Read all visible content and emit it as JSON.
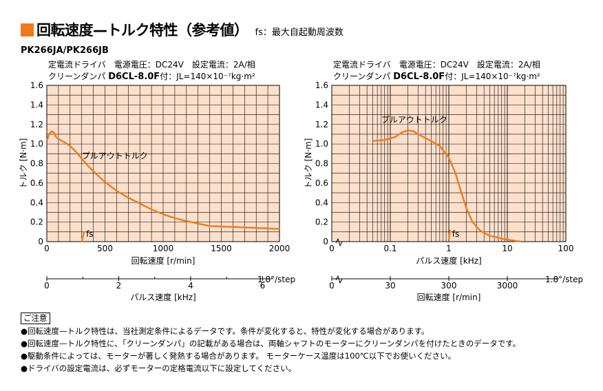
{
  "header": {
    "title": "回転速度—トルク特性（参考値）",
    "subtitle": "fs：最大自起動周波数",
    "accent": "#f07a1a"
  },
  "model": "PK266JA/PK266JB",
  "chart_data": [
    {
      "type": "line",
      "cond1": "定電流ドライバ　電源電圧：DC24V　設定電流：2A/相",
      "cond2_pre": "クリーンダンパ ",
      "cond2_bold": "D6CL-8.0F",
      "cond2_post": "付：JL=140×10⁻⁷kg·m²",
      "ylabel": "トルク [N·m]",
      "xlabel": "回転速度 [r/min]",
      "xlabel2": "パルス速度 [kHz]",
      "ylim": [
        0,
        1.6
      ],
      "xlim": [
        0,
        2000
      ],
      "yticks": [
        "0",
        "0.2",
        "0.4",
        "0.6",
        "0.8",
        "1.0",
        "1.2",
        "1.4",
        "1.6"
      ],
      "xticks": [
        "0",
        "500",
        "1000",
        "1500",
        "2000"
      ],
      "x2ticks": [
        "0",
        "2",
        "4",
        "6"
      ],
      "x2unit": "1.8°/step",
      "curve_label": "プルアウトトルク",
      "fs_label": "fs",
      "color": "#f07a1a",
      "grid_color": "#fde0cc",
      "series": [
        {
          "name": "プルアウトトルク",
          "x": [
            0,
            20,
            40,
            60,
            80,
            100,
            150,
            200,
            250,
            300,
            350,
            400,
            500,
            600,
            700,
            800,
            900,
            1000,
            1100,
            1200,
            1300,
            1400,
            1500,
            1600,
            1800,
            2000
          ],
          "y": [
            1.03,
            1.1,
            1.13,
            1.12,
            1.07,
            1.05,
            1.02,
            0.98,
            0.92,
            0.85,
            0.78,
            0.72,
            0.61,
            0.52,
            0.45,
            0.39,
            0.33,
            0.28,
            0.24,
            0.21,
            0.185,
            0.16,
            0.155,
            0.15,
            0.14,
            0.13
          ]
        }
      ],
      "fs_x": [
        300,
        320
      ],
      "fs_y": [
        0.0,
        0.1
      ]
    },
    {
      "type": "line",
      "cond1": "定電流ドライバ　電源電圧：DC24V　設定電流：2A/相",
      "cond2_pre": "クリーンダンパ ",
      "cond2_bold": "D6CL-8.0F",
      "cond2_post": "付：JL=140×10⁻⁷kg·m²",
      "ylabel": "トルク [N·m]",
      "xlabel": "パルス速度 [kHz]",
      "xlabel2": "回転速度 [r/min]",
      "x_scale": "log",
      "ylim": [
        0,
        1.6
      ],
      "xlim": [
        0.01,
        100
      ],
      "yticks": [
        "0",
        "0.2",
        "0.4",
        "0.6",
        "0.8",
        "1.0",
        "1.2",
        "1.4",
        "1.6"
      ],
      "xticks": [
        "0",
        "0.1",
        "1",
        "10",
        "100"
      ],
      "x2ticks": [
        "0",
        "30",
        "300",
        "3000"
      ],
      "x2unit": "1.8°/step",
      "curve_label": "プルアウトトルク",
      "fs_label": "fs",
      "color": "#f07a1a",
      "grid_color": "#fde0cc",
      "series": [
        {
          "name": "プルアウトトルク",
          "x": [
            0.05,
            0.08,
            0.12,
            0.16,
            0.2,
            0.25,
            0.3,
            0.4,
            0.5,
            0.7,
            1.0,
            1.3,
            1.6,
            2.0,
            2.5,
            3.0,
            3.5,
            4.0,
            5.0,
            6.0,
            8.0,
            10,
            13,
            17
          ],
          "y": [
            1.03,
            1.04,
            1.07,
            1.12,
            1.14,
            1.13,
            1.1,
            1.06,
            1.03,
            0.98,
            0.86,
            0.7,
            0.52,
            0.34,
            0.21,
            0.15,
            0.11,
            0.09,
            0.06,
            0.05,
            0.03,
            0.02,
            0.01,
            0.0
          ]
        }
      ],
      "fs_x": [
        1.0,
        1.05
      ],
      "fs_y": [
        0.02,
        0.12
      ]
    }
  ],
  "notes": {
    "title": "ご注意",
    "items": [
      "●回転速度—トルク特性は、当社測定条件によるデータです。条件が変化すると、特性が変化する場合があります。",
      "●回転速度—トルク特性に、「クリーンダンパ」の記載がある場合は、両軸シャフトのモーターにクリーンダンパを付けたときのデータです。",
      "●駆動条件によっては、モーターが著しく発熱する場合があります。 モーターケース温度は100℃以下でお使いください。",
      "●ドライバの設定電流は、必ずモーターの定格電流以下に設定してください。"
    ]
  }
}
